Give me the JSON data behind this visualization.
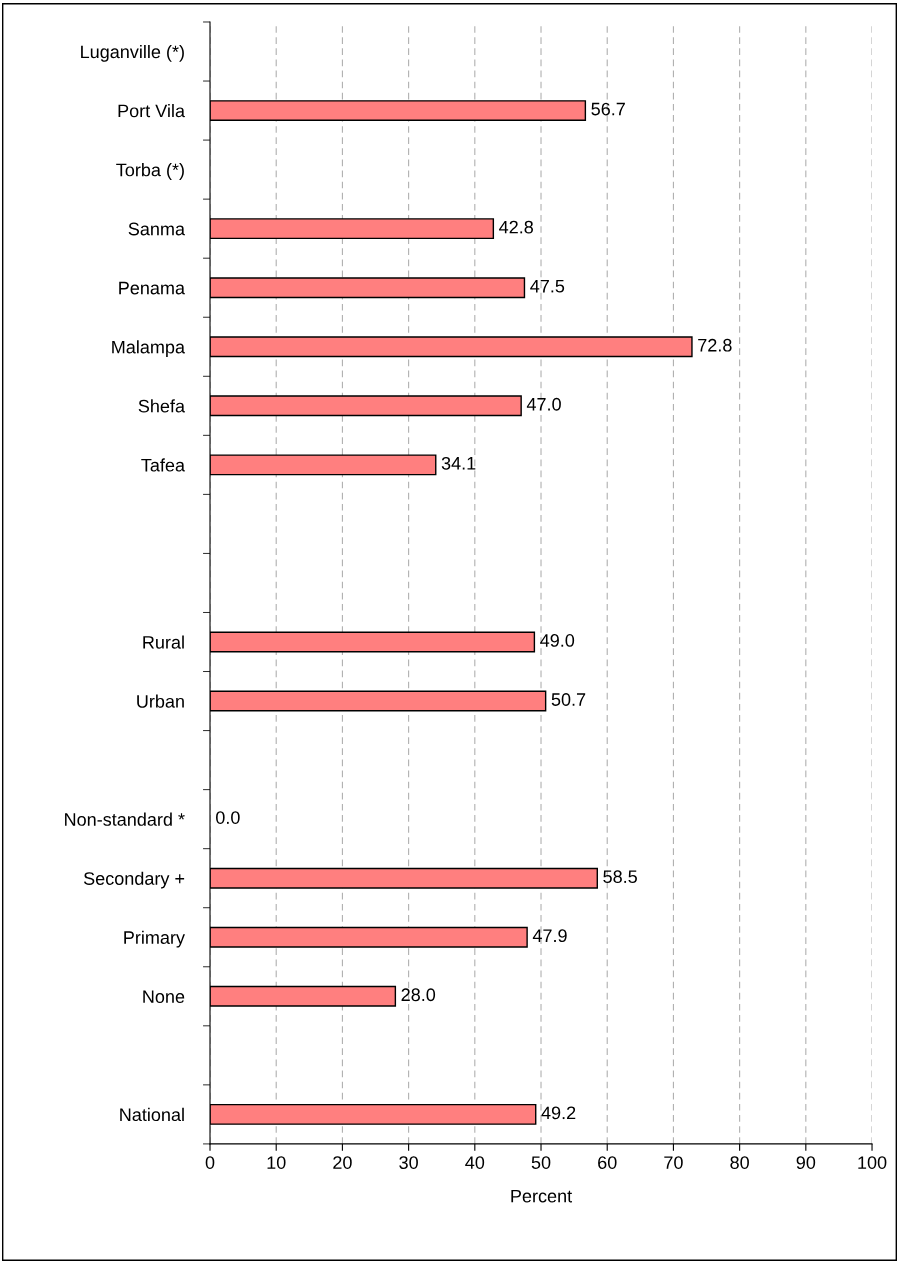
{
  "chart_data": {
    "type": "bar",
    "orientation": "horizontal",
    "categories": [
      "Luganville (*)",
      "Port Vila",
      "Torba (*)",
      "Sanma",
      "Penama",
      "Malampa",
      "Shefa",
      "Tafea",
      null,
      null,
      "Rural",
      "Urban",
      null,
      "Non-standard *",
      "Secondary +",
      "Primary",
      "None",
      null,
      "National"
    ],
    "values": [
      null,
      56.7,
      null,
      42.8,
      47.5,
      72.8,
      47.0,
      34.1,
      null,
      null,
      49.0,
      50.7,
      null,
      0.0,
      58.5,
      47.9,
      28.0,
      null,
      49.2
    ],
    "value_labels": [
      null,
      "56.7",
      null,
      "42.8",
      "47.5",
      "72.8",
      "47.0",
      "34.1",
      null,
      null,
      "49.0",
      "50.7",
      null,
      "0.0",
      "58.5",
      "47.9",
      "28.0",
      null,
      "49.2"
    ],
    "color": "#ff7f7f",
    "xlabel": "Percent",
    "xlim": [
      0,
      100
    ],
    "xticks": [
      0,
      10,
      20,
      30,
      40,
      50,
      60,
      70,
      80,
      90,
      100
    ],
    "grid": "x"
  }
}
